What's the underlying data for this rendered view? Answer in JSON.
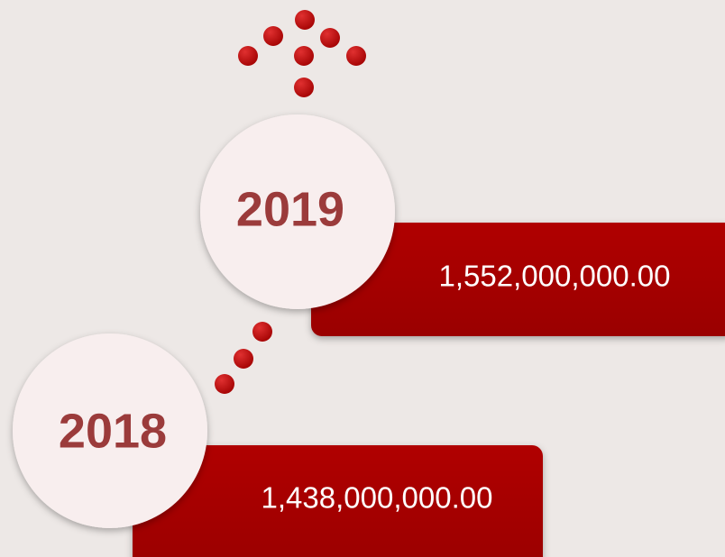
{
  "timeline": [
    {
      "year": "2019",
      "value": "1,552,000,000.00"
    },
    {
      "year": "2018",
      "value": "1,438,000,000.00"
    }
  ]
}
